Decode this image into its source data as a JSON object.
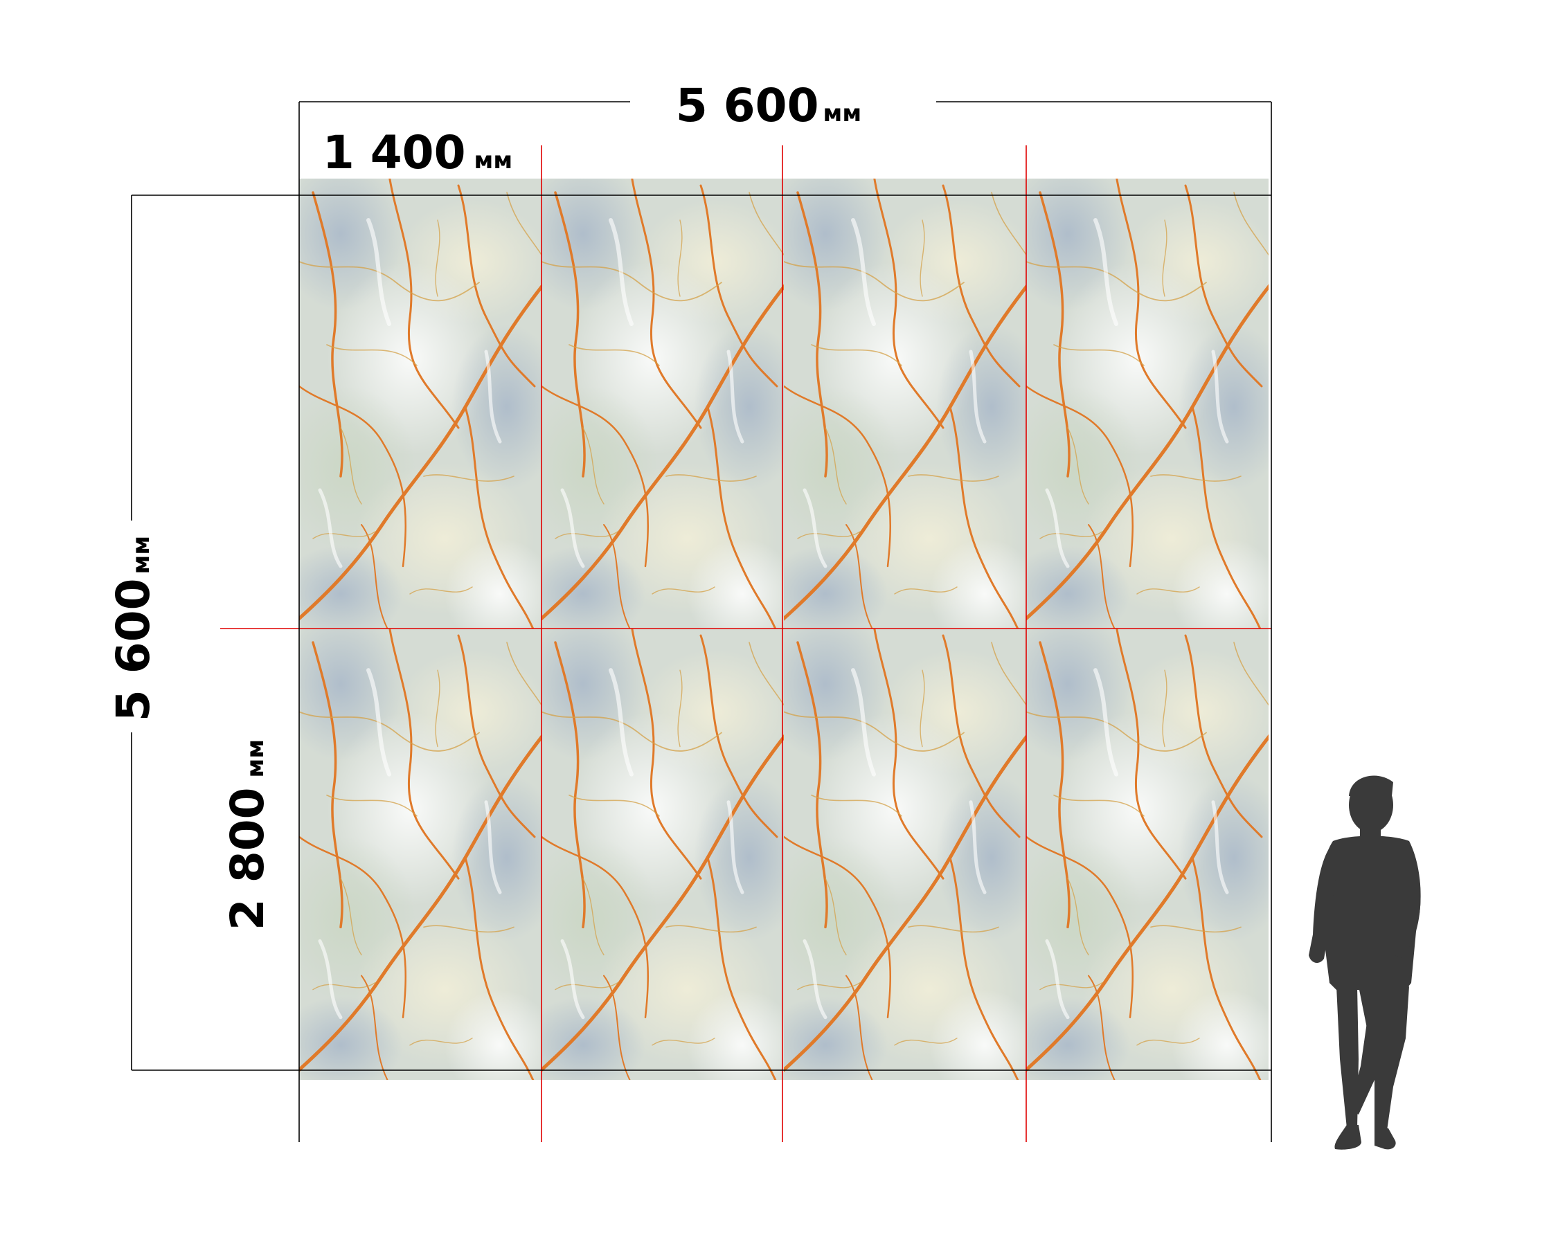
{
  "dimensions": {
    "total_width": {
      "value": "5 600",
      "unit": "мм"
    },
    "total_height": {
      "value": "5 600",
      "unit": "мм"
    },
    "panel_width": {
      "value": "1 400",
      "unit": "мм"
    },
    "panel_height": {
      "value": "2 800",
      "unit": "мм"
    }
  },
  "grid": {
    "columns": 4,
    "rows": 2
  },
  "colors": {
    "cut_line": "#e00000",
    "dim_line": "#000000",
    "marble_base": "#d5dcd4",
    "marble_blue": "#a9b8c9",
    "marble_cream": "#e8e6cc",
    "vein_orange": "#e07a2a",
    "vein_gold": "#d4a24a",
    "silhouette": "#3a3a3a"
  },
  "figure": {
    "icon": "person-silhouette-icon"
  }
}
